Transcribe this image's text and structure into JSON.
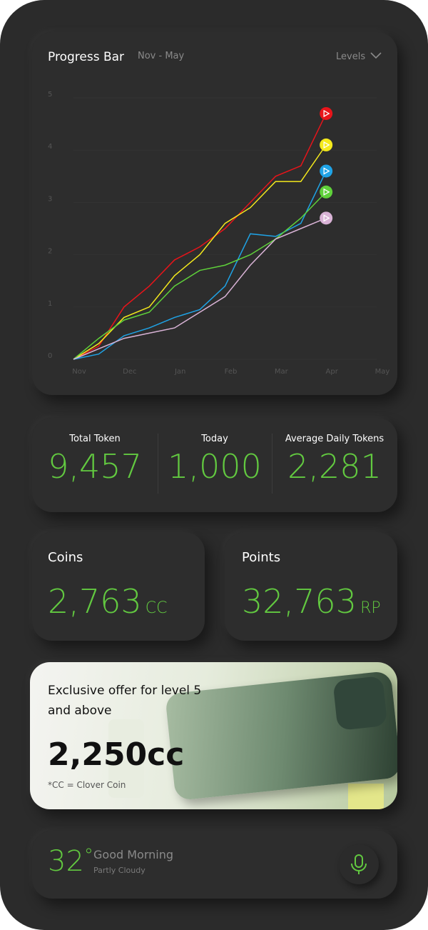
{
  "chart_data": {
    "type": "line",
    "title": "Progress Bar",
    "subtitle": "Nov - May",
    "dropdown": "Levels",
    "x": [
      0,
      0.5,
      1,
      1.5,
      2,
      2.5,
      3,
      3.5,
      4,
      4.5,
      5
    ],
    "xlim": [
      0,
      6
    ],
    "xticks": [
      {
        "value": 0,
        "label": "Nov"
      },
      {
        "value": 1,
        "label": "Dec"
      },
      {
        "value": 2,
        "label": "Jan"
      },
      {
        "value": 3,
        "label": "Feb"
      },
      {
        "value": 4,
        "label": "Mar"
      },
      {
        "value": 5,
        "label": "Apr"
      },
      {
        "value": 6,
        "label": "May"
      }
    ],
    "ylim": [
      0,
      5
    ],
    "yticks": [
      0,
      1,
      2,
      3,
      4,
      5
    ],
    "grid": true,
    "series": [
      {
        "name": "Red",
        "color": "#e8141a",
        "values": [
          0,
          0.25,
          1.0,
          1.4,
          1.9,
          2.15,
          2.5,
          3.0,
          3.5,
          3.7,
          4.7
        ]
      },
      {
        "name": "Yellow",
        "color": "#f5ea1c",
        "values": [
          0,
          0.3,
          0.8,
          1.0,
          1.6,
          2.0,
          2.6,
          2.9,
          3.4,
          3.4,
          4.1
        ]
      },
      {
        "name": "Blue",
        "color": "#1fa3e6",
        "values": [
          0,
          0.1,
          0.45,
          0.6,
          0.8,
          0.95,
          1.4,
          2.4,
          2.35,
          2.6,
          3.6
        ]
      },
      {
        "name": "Green",
        "color": "#5fd13a",
        "values": [
          0,
          0.4,
          0.75,
          0.9,
          1.4,
          1.7,
          1.8,
          2.0,
          2.3,
          2.7,
          3.2
        ]
      },
      {
        "name": "Pink",
        "color": "#d9b3d6",
        "values": [
          0,
          0.2,
          0.4,
          0.5,
          0.6,
          0.9,
          1.2,
          1.8,
          2.3,
          2.5,
          2.7
        ]
      }
    ]
  },
  "stats": [
    {
      "label": "Total Token",
      "value": "9,457"
    },
    {
      "label": "Today",
      "value": "1,000"
    },
    {
      "label": "Average Daily Tokens",
      "value": "2,281"
    }
  ],
  "coins": {
    "label": "Coins",
    "value": "2,763",
    "unit": "CC"
  },
  "points": {
    "label": "Points",
    "value": "32,763",
    "unit": "RP"
  },
  "offer": {
    "title": "Exclusive offer for level 5 and above",
    "price": "2,250cc",
    "note": "*CC = Clover Coin"
  },
  "weather": {
    "temp": "32",
    "degree": "°",
    "greeting": "Good Morning",
    "condition": "Partly Cloudy"
  }
}
